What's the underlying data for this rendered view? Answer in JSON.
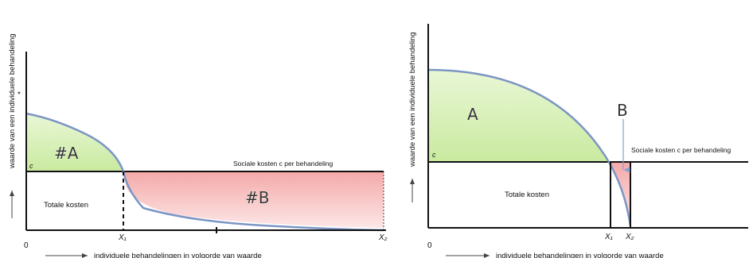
{
  "left_panel": {
    "y_axis_label": "waarde van een individuele behandeling",
    "x_axis_label": "individuele behandelingen  in volgorde van waarde",
    "origin_label": "0",
    "c_label": "c",
    "area_a_label": "#A",
    "area_b_label": "#B",
    "totale_kosten_label": "Totale kosten",
    "sociale_kosten_label": "Sociale kosten c per behandeling",
    "x1_label": "X₁",
    "x2_label": "X₂",
    "star_label": "*"
  },
  "right_panel": {
    "y_axis_label": "waarde van een individuele behandeling",
    "x_axis_label": "individuele behandelingen  in volgorde van waarde",
    "origin_label": "0",
    "c_label": "c",
    "area_a_label": "A",
    "area_b_label": "B",
    "totale_kosten_label": "Totale kosten",
    "sociale_kosten_label": "Sociale kosten c per behandeling",
    "x1_label": "X₁",
    "x2_label": "X₂"
  },
  "colors": {
    "area_a_fill": "#d6f0b4",
    "area_b_fill": "#f7c2c2",
    "curve_stroke": "#7b95c4",
    "axis": "#111111"
  }
}
